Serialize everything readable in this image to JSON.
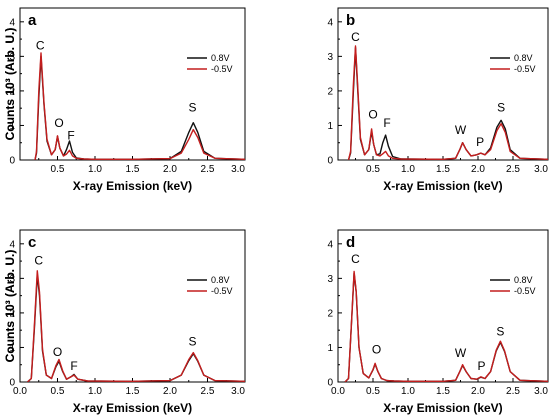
{
  "colors": {
    "series_0_8V": "#111111",
    "series_neg0_5V": "#c41e1e"
  },
  "chart_data": [
    {
      "type": "line",
      "panel_letter": "a",
      "xlabel": "X-ray Emission (keV)",
      "ylabel": "Counts 10³ (Arb. U.)",
      "xlim": [
        0.0,
        3.0
      ],
      "ylim": [
        0,
        4.4
      ],
      "xticks": [
        "0.5",
        "1.0",
        "1.5",
        "2.0",
        "2.5",
        "3.0"
      ],
      "xtick_values": [
        0.5,
        1.0,
        1.5,
        2.0,
        2.5,
        3.0
      ],
      "yticks": [
        "0",
        "1",
        "2",
        "3",
        "4"
      ],
      "yticks_values": [
        0,
        1,
        2,
        3,
        4
      ],
      "legend": [
        "0.8V",
        "-0.5V"
      ],
      "legend_position": "top-right",
      "peak_labels": [
        {
          "text": "C",
          "x": 0.27,
          "y": 3.2
        },
        {
          "text": "O",
          "x": 0.52,
          "y": 0.95
        },
        {
          "text": "F",
          "x": 0.68,
          "y": 0.6
        },
        {
          "text": "S",
          "x": 2.3,
          "y": 1.4
        }
      ],
      "series": [
        {
          "name": "0.8V",
          "color": "#111111",
          "x": [
            0.2,
            0.22,
            0.25,
            0.28,
            0.32,
            0.36,
            0.42,
            0.47,
            0.5,
            0.53,
            0.58,
            0.62,
            0.66,
            0.7,
            0.75,
            0.85,
            1.0,
            1.5,
            2.0,
            2.15,
            2.25,
            2.31,
            2.37,
            2.45,
            2.6,
            3.0
          ],
          "y": [
            0.0,
            0.2,
            1.8,
            3.0,
            1.6,
            0.55,
            0.15,
            0.3,
            0.68,
            0.35,
            0.12,
            0.3,
            0.55,
            0.22,
            0.06,
            0.03,
            0.02,
            0.02,
            0.04,
            0.25,
            0.8,
            1.08,
            0.8,
            0.25,
            0.05,
            0.02
          ]
        },
        {
          "name": "-0.5V",
          "color": "#c41e1e",
          "x": [
            0.2,
            0.22,
            0.25,
            0.28,
            0.32,
            0.36,
            0.42,
            0.47,
            0.5,
            0.53,
            0.58,
            0.62,
            0.66,
            0.7,
            0.75,
            0.85,
            1.0,
            1.5,
            2.0,
            2.15,
            2.25,
            2.31,
            2.37,
            2.45,
            2.6,
            3.0
          ],
          "y": [
            0.0,
            0.25,
            2.0,
            3.1,
            1.65,
            0.6,
            0.15,
            0.3,
            0.7,
            0.35,
            0.12,
            0.17,
            0.28,
            0.12,
            0.05,
            0.03,
            0.02,
            0.02,
            0.04,
            0.2,
            0.6,
            0.88,
            0.65,
            0.2,
            0.05,
            0.02
          ]
        }
      ]
    },
    {
      "type": "line",
      "panel_letter": "b",
      "xlabel": "X-ray Emission (keV)",
      "ylabel": "Counts 10³ (Arb. U.)",
      "xlim": [
        0.0,
        3.0
      ],
      "ylim": [
        0,
        4.4
      ],
      "xticks": [
        "0.5",
        "1.0",
        "1.5",
        "2.0",
        "2.5",
        "3.0"
      ],
      "xtick_values": [
        0.5,
        1.0,
        1.5,
        2.0,
        2.5,
        3.0
      ],
      "yticks": [
        "0",
        "1",
        "2",
        "3",
        "4"
      ],
      "yticks_values": [
        0,
        1,
        2,
        3,
        4
      ],
      "legend": [
        "0.8V",
        "-0.5V"
      ],
      "legend_position": "top-right",
      "peak_labels": [
        {
          "text": "C",
          "x": 0.25,
          "y": 3.45
        },
        {
          "text": "O",
          "x": 0.5,
          "y": 1.2
        },
        {
          "text": "F",
          "x": 0.7,
          "y": 0.95
        },
        {
          "text": "W",
          "x": 1.75,
          "y": 0.75
        },
        {
          "text": "P",
          "x": 2.03,
          "y": 0.4
        },
        {
          "text": "S",
          "x": 2.33,
          "y": 1.4
        }
      ],
      "series": [
        {
          "name": "0.8V",
          "color": "#111111",
          "x": [
            0.15,
            0.18,
            0.22,
            0.25,
            0.28,
            0.32,
            0.38,
            0.44,
            0.48,
            0.51,
            0.55,
            0.6,
            0.64,
            0.68,
            0.72,
            0.78,
            0.9,
            1.5,
            1.68,
            1.74,
            1.78,
            1.83,
            1.9,
            1.98,
            2.04,
            2.1,
            2.18,
            2.27,
            2.33,
            2.39,
            2.46,
            2.6,
            3.0
          ],
          "y": [
            0.0,
            0.2,
            2.0,
            3.25,
            2.1,
            0.6,
            0.15,
            0.3,
            0.82,
            0.45,
            0.15,
            0.18,
            0.5,
            0.72,
            0.4,
            0.1,
            0.03,
            0.02,
            0.05,
            0.3,
            0.5,
            0.3,
            0.12,
            0.15,
            0.2,
            0.15,
            0.35,
            0.95,
            1.15,
            0.9,
            0.3,
            0.05,
            0.02
          ]
        },
        {
          "name": "-0.5V",
          "color": "#c41e1e",
          "x": [
            0.15,
            0.18,
            0.22,
            0.25,
            0.28,
            0.32,
            0.38,
            0.44,
            0.48,
            0.51,
            0.55,
            0.6,
            0.64,
            0.68,
            0.72,
            0.78,
            0.9,
            1.5,
            1.68,
            1.74,
            1.78,
            1.83,
            1.9,
            1.98,
            2.04,
            2.1,
            2.18,
            2.27,
            2.33,
            2.39,
            2.46,
            2.6,
            3.0
          ],
          "y": [
            0.0,
            0.25,
            2.2,
            3.3,
            2.2,
            0.65,
            0.15,
            0.3,
            0.9,
            0.45,
            0.15,
            0.12,
            0.18,
            0.25,
            0.12,
            0.05,
            0.03,
            0.02,
            0.05,
            0.3,
            0.5,
            0.3,
            0.12,
            0.15,
            0.2,
            0.15,
            0.3,
            0.85,
            1.05,
            0.8,
            0.25,
            0.05,
            0.02
          ]
        }
      ]
    },
    {
      "type": "line",
      "panel_letter": "c",
      "xlabel": "X-ray Emission (keV)",
      "ylabel": "Counts 10³ (Arb. U.)",
      "xlim": [
        0.0,
        3.0
      ],
      "ylim": [
        0,
        4.4
      ],
      "xticks": [
        "0.0",
        "0.5",
        "1.0",
        "1.5",
        "2.0",
        "2.5",
        "3.0"
      ],
      "xtick_values": [
        0.0,
        0.5,
        1.0,
        1.5,
        2.0,
        2.5,
        3.0
      ],
      "yticks": [
        "0",
        "1",
        "2",
        "3",
        "4"
      ],
      "yticks_values": [
        0,
        1,
        2,
        3,
        4
      ],
      "legend": [
        "0.8V",
        "-0.5V"
      ],
      "legend_position": "top-right",
      "peak_labels": [
        {
          "text": "C",
          "x": 0.25,
          "y": 3.4
        },
        {
          "text": "O",
          "x": 0.5,
          "y": 0.75
        },
        {
          "text": "F",
          "x": 0.72,
          "y": 0.35
        },
        {
          "text": "S",
          "x": 2.3,
          "y": 1.05
        }
      ],
      "series": [
        {
          "name": "0.8V",
          "color": "#111111",
          "x": [
            0.1,
            0.15,
            0.19,
            0.23,
            0.26,
            0.3,
            0.35,
            0.42,
            0.48,
            0.52,
            0.57,
            0.62,
            0.68,
            0.72,
            0.77,
            0.9,
            1.5,
            2.0,
            2.15,
            2.25,
            2.31,
            2.37,
            2.45,
            2.6,
            3.0
          ],
          "y": [
            0.0,
            0.1,
            1.5,
            3.1,
            2.5,
            0.9,
            0.2,
            0.1,
            0.45,
            0.6,
            0.3,
            0.08,
            0.15,
            0.22,
            0.08,
            0.03,
            0.02,
            0.04,
            0.2,
            0.62,
            0.82,
            0.6,
            0.2,
            0.04,
            0.02
          ]
        },
        {
          "name": "-0.5V",
          "color": "#c41e1e",
          "x": [
            0.1,
            0.15,
            0.19,
            0.23,
            0.26,
            0.3,
            0.35,
            0.42,
            0.48,
            0.52,
            0.57,
            0.62,
            0.68,
            0.72,
            0.77,
            0.9,
            1.5,
            2.0,
            2.15,
            2.25,
            2.31,
            2.37,
            2.45,
            2.6,
            3.0
          ],
          "y": [
            0.0,
            0.1,
            1.6,
            3.22,
            2.6,
            0.95,
            0.2,
            0.1,
            0.48,
            0.65,
            0.32,
            0.08,
            0.15,
            0.2,
            0.08,
            0.03,
            0.02,
            0.04,
            0.2,
            0.65,
            0.85,
            0.62,
            0.2,
            0.04,
            0.02
          ]
        }
      ]
    },
    {
      "type": "line",
      "panel_letter": "d",
      "xlabel": "X-ray Emission (keV)",
      "ylabel": "Counts 10³ (Arb. U.)",
      "xlim": [
        0.0,
        3.0
      ],
      "ylim": [
        0,
        4.4
      ],
      "xticks": [
        "0.0",
        "0.5",
        "1.0",
        "1.5",
        "2.0",
        "2.5",
        "3.0"
      ],
      "xtick_values": [
        0.0,
        0.5,
        1.0,
        1.5,
        2.0,
        2.5,
        3.0
      ],
      "yticks": [
        "0",
        "1",
        "2",
        "3",
        "4"
      ],
      "yticks_values": [
        0,
        1,
        2,
        3,
        4
      ],
      "legend": [
        "0.8V",
        "-0.5V"
      ],
      "legend_position": "top-right",
      "peak_labels": [
        {
          "text": "C",
          "x": 0.25,
          "y": 3.45
        },
        {
          "text": "O",
          "x": 0.55,
          "y": 0.82
        },
        {
          "text": "W",
          "x": 1.75,
          "y": 0.72
        },
        {
          "text": "P",
          "x": 2.05,
          "y": 0.35
        },
        {
          "text": "S",
          "x": 2.32,
          "y": 1.35
        }
      ],
      "series": [
        {
          "name": "0.8V",
          "color": "#111111",
          "x": [
            0.1,
            0.15,
            0.19,
            0.23,
            0.26,
            0.3,
            0.36,
            0.44,
            0.5,
            0.53,
            0.57,
            0.62,
            0.7,
            0.8,
            1.0,
            1.5,
            1.68,
            1.74,
            1.78,
            1.83,
            1.9,
            1.98,
            2.04,
            2.1,
            2.18,
            2.26,
            2.32,
            2.38,
            2.46,
            2.6,
            3.0
          ],
          "y": [
            0.0,
            0.1,
            1.6,
            3.15,
            2.6,
            1.0,
            0.25,
            0.12,
            0.35,
            0.52,
            0.3,
            0.1,
            0.04,
            0.03,
            0.02,
            0.02,
            0.05,
            0.3,
            0.48,
            0.3,
            0.1,
            0.08,
            0.14,
            0.1,
            0.3,
            0.9,
            1.15,
            0.88,
            0.3,
            0.05,
            0.02
          ]
        },
        {
          "name": "-0.5V",
          "color": "#c41e1e",
          "x": [
            0.1,
            0.15,
            0.19,
            0.23,
            0.26,
            0.3,
            0.36,
            0.44,
            0.5,
            0.53,
            0.57,
            0.62,
            0.7,
            0.8,
            1.0,
            1.5,
            1.68,
            1.74,
            1.78,
            1.83,
            1.9,
            1.98,
            2.04,
            2.1,
            2.18,
            2.26,
            2.32,
            2.38,
            2.46,
            2.6,
            3.0
          ],
          "y": [
            0.0,
            0.1,
            1.62,
            3.2,
            2.62,
            1.0,
            0.25,
            0.12,
            0.36,
            0.54,
            0.3,
            0.1,
            0.04,
            0.03,
            0.02,
            0.02,
            0.05,
            0.3,
            0.5,
            0.3,
            0.1,
            0.08,
            0.15,
            0.1,
            0.3,
            0.92,
            1.18,
            0.9,
            0.3,
            0.05,
            0.02
          ]
        }
      ]
    }
  ]
}
